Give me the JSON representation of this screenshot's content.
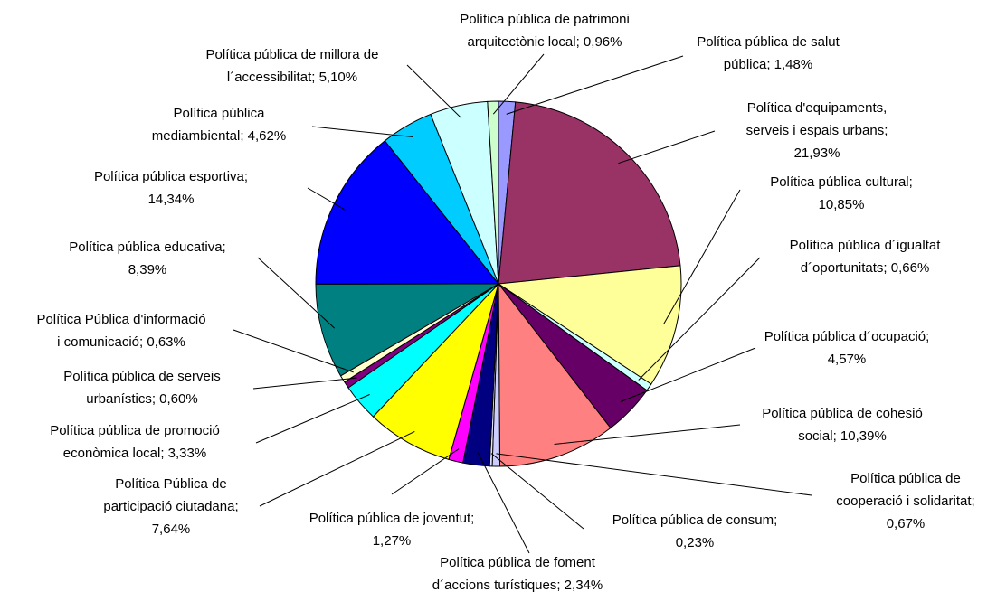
{
  "chart_data": {
    "type": "pie",
    "values": [
      1.48,
      21.93,
      10.85,
      0.66,
      4.57,
      10.39,
      0.67,
      0.23,
      2.34,
      1.27,
      7.64,
      3.33,
      0.6,
      0.63,
      8.39,
      14.34,
      4.62,
      5.1,
      0.96
    ],
    "value_labels": [
      "Política  pública de salut\npública; 1,48%",
      "Política d'equipaments,\nserveis i espais urbans;\n21,93%",
      "Política pública cultural;\n10,85%",
      "Política pública d´igualtat\nd´oportunitats; 0,66%",
      "Política pública d´ocupació;\n4,57%",
      "Política pública de cohesió\nsocial; 10,39%",
      "Política pública de\ncooperació i solidaritat;\n0,67%",
      "Política pública de consum;\n0,23%",
      "Política pública de foment\nd´accions turístiques; 2,34%",
      "Política pública de joventut;\n1,27%",
      "Política Pública de\nparticipació ciutadana;\n7,64%",
      "Política pública de promoció\neconòmica local; 3,33%",
      "Política pública de serveis\nurbanístics; 0,60%",
      "Política Pública d'informació\ni comunicació; 0,63%",
      "Política pública educativa;\n8,39%",
      "Política pública esportiva;\n14,34%",
      "Política pública\nmediambiental; 4,62%",
      "Política pública de millora de\nl´accessibilitat; 5,10%",
      "Política pública de patrimoni\narquitectònic local; 0,96%"
    ],
    "colors": [
      "#9999ff",
      "#993366",
      "#ffff99",
      "#ccffff",
      "#660066",
      "#ff8080",
      "#ccccff",
      "#e0e0ff",
      "#000080",
      "#ff00ff",
      "#ffff00",
      "#00ffff",
      "#800080",
      "#ffffcc",
      "#008080",
      "#0000ff",
      "#00ccff",
      "#ccffff",
      "#ccffcc"
    ]
  }
}
